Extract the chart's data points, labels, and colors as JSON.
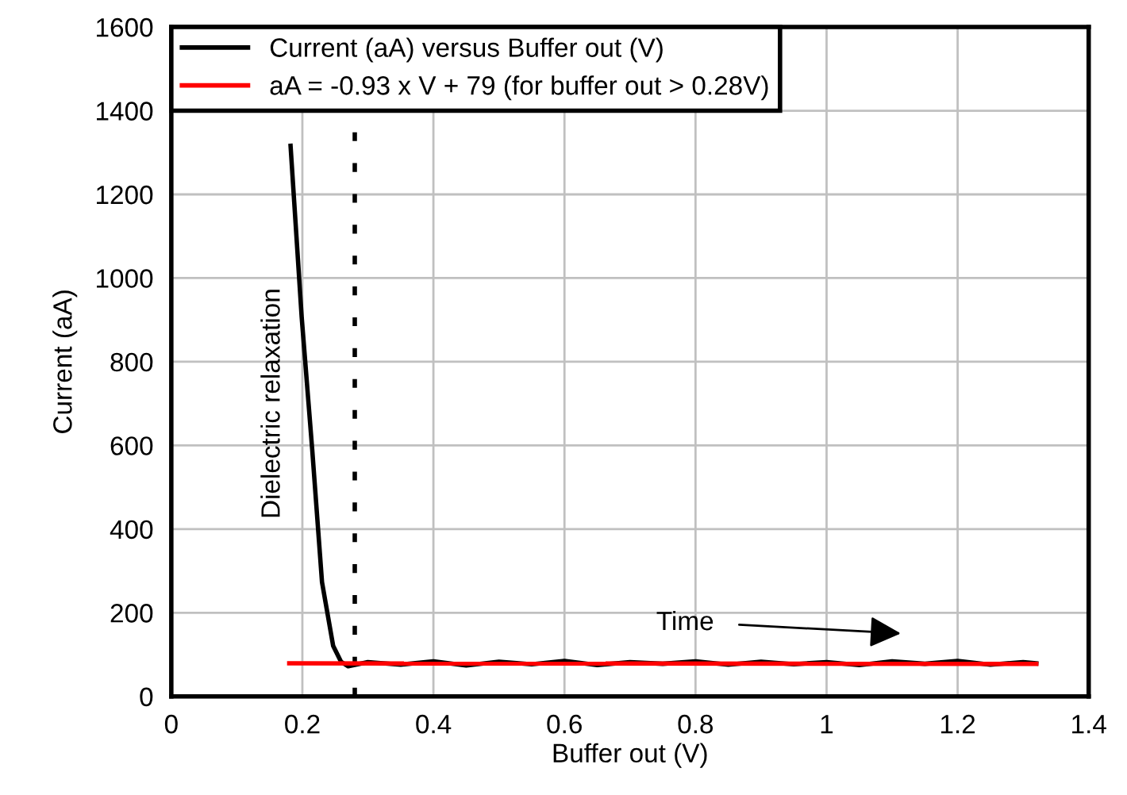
{
  "chart_data": {
    "type": "line",
    "xlabel": "Buffer out (V)",
    "ylabel": "Current (aA)",
    "xlim": [
      0,
      1.4
    ],
    "xticks": [
      0,
      0.2,
      0.4,
      0.6,
      0.8,
      1,
      1.2,
      1.4
    ],
    "ylim": [
      0,
      1600
    ],
    "yticks": [
      0,
      200,
      400,
      600,
      800,
      1000,
      1200,
      1400,
      1600
    ],
    "grid": true,
    "legend": "top left",
    "marker": "none",
    "line_style": "solid",
    "series": [
      {
        "name": "Current (aA) versus Buffer out (V)",
        "color": "#000000",
        "x": [
          0.182,
          0.199,
          0.215,
          0.23,
          0.247,
          0.259,
          0.27,
          0.3,
          0.35,
          0.4,
          0.45,
          0.5,
          0.55,
          0.6,
          0.65,
          0.7,
          0.75,
          0.8,
          0.85,
          0.9,
          0.95,
          1.0,
          1.05,
          1.1,
          1.15,
          1.2,
          1.25,
          1.3,
          1.32
        ],
        "values": [
          1316,
          906,
          591,
          273,
          121,
          83,
          72,
          82,
          76,
          84,
          74,
          83,
          77,
          85,
          75,
          82,
          78,
          84,
          76,
          83,
          77,
          82,
          75,
          84,
          78,
          85,
          76,
          82,
          79
        ]
      },
      {
        "name": "aA = -0.93 x V + 79 (for buffer out > 0.28V)",
        "color": "#ff0000",
        "x": [
          0.18,
          1.32
        ],
        "values": [
          79,
          78
        ]
      }
    ],
    "ref_lines": [
      {
        "axis": "x",
        "value": 0.28,
        "color": "#000000",
        "line_style": "dotted"
      }
    ],
    "annotations": [
      "Dielectric relaxation",
      "Time"
    ]
  }
}
